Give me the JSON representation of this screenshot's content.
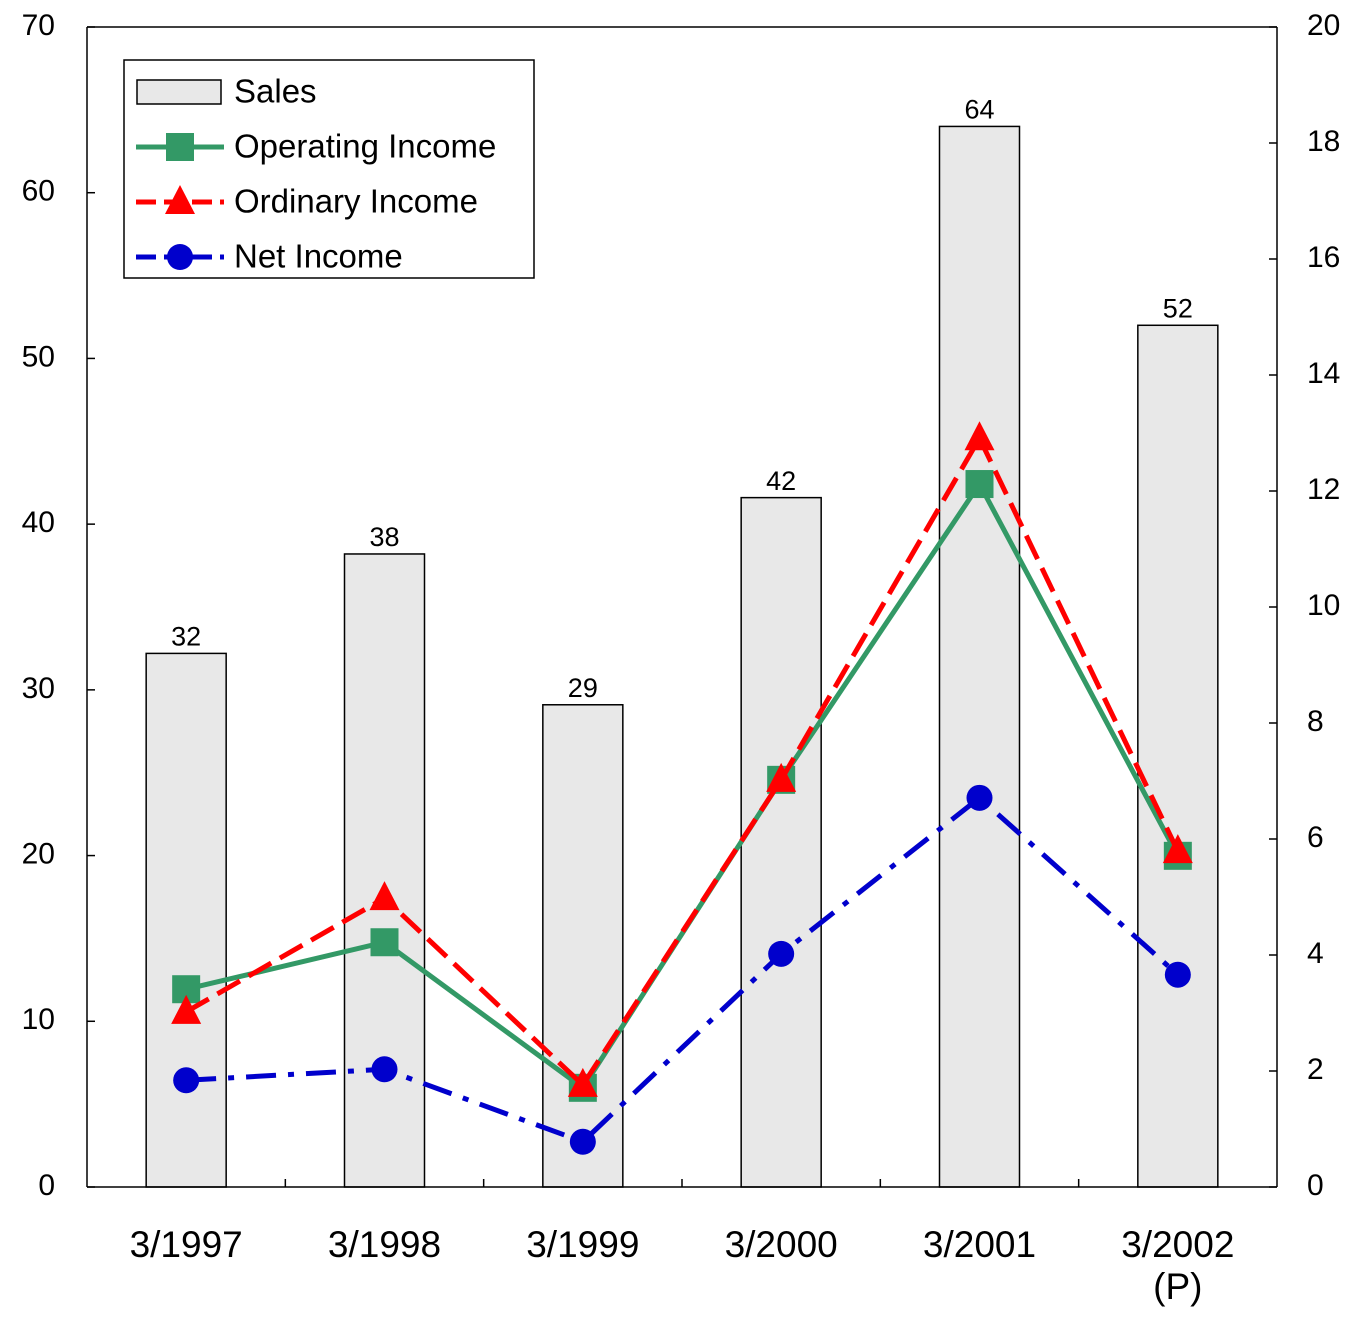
{
  "chart_data": {
    "type": "bar",
    "categories": [
      "3/1997",
      "3/1998",
      "3/1999",
      "3/2000",
      "3/2001",
      "3/2002\n(P)"
    ],
    "series": [
      {
        "name": "Sales",
        "type": "bar",
        "color": "#e8e8e8",
        "values": [
          32.2,
          38.2,
          29.1,
          41.6,
          64,
          52
        ],
        "value_labels": [
          "32",
          "38",
          "29",
          "42",
          "64",
          "52"
        ]
      },
      {
        "name": "Operating Income",
        "type": "line",
        "axis": "y2",
        "color": "#339966",
        "marker": "square",
        "dash": "solid",
        "values": [
          3.41,
          4.22,
          1.71,
          7.02,
          12.12,
          5.71
        ]
      },
      {
        "name": "Ordinary Income",
        "type": "line",
        "axis": "y2",
        "color": "#ff0000",
        "marker": "triangle",
        "dash": "dashed",
        "values": [
          3.02,
          4.98,
          1.76,
          7.02,
          12.91,
          5.79
        ]
      },
      {
        "name": "Net Income",
        "type": "line",
        "axis": "y2",
        "color": "#0000cc",
        "marker": "circle",
        "dash": "dashdot",
        "values": [
          1.84,
          2.03,
          0.78,
          4.02,
          6.71,
          3.66
        ]
      }
    ],
    "ylim": [
      0,
      70
    ],
    "yticks": [
      0,
      10,
      20,
      30,
      40,
      50,
      60,
      70
    ],
    "y2lim": [
      0,
      20
    ],
    "y2ticks": [
      0,
      2,
      4,
      6,
      8,
      10,
      12,
      14,
      16,
      18,
      20
    ],
    "legend": "top-left"
  }
}
